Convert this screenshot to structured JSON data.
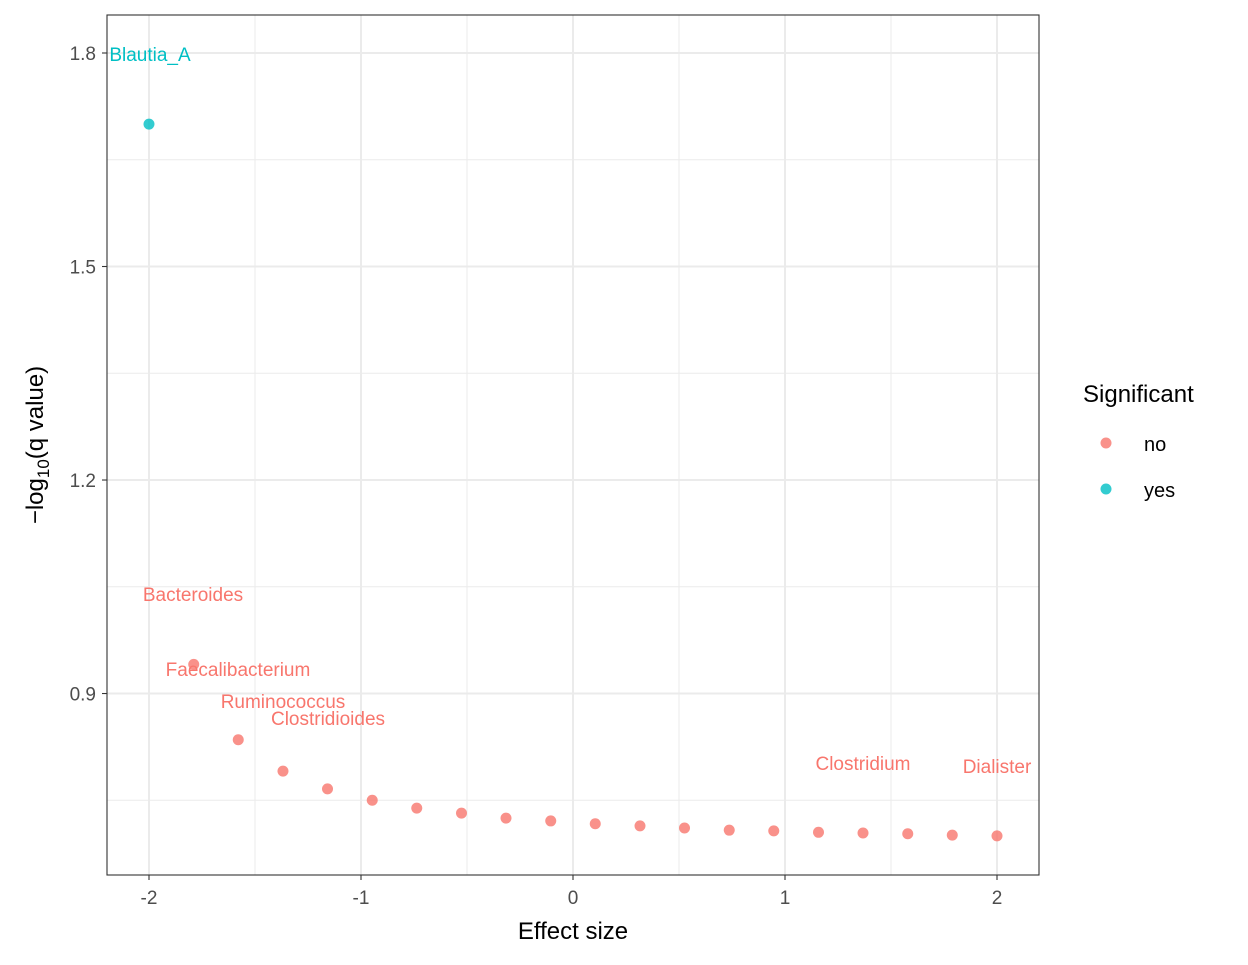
{
  "chart_data": {
    "type": "scatter",
    "title": "",
    "xlabel": "Effect size",
    "ylabel_prefix": "−log",
    "ylabel_sub": "10",
    "ylabel_suffix": "(q value)",
    "xlim": [
      -2.2,
      2.2
    ],
    "ylim": [
      0.657,
      1.865
    ],
    "xticks": [
      -2,
      -1,
      0,
      1,
      2
    ],
    "xtick_labels": [
      "-2",
      "-1",
      "0",
      "1",
      "2"
    ],
    "yticks": [
      0.9,
      1.2,
      1.5,
      1.8
    ],
    "ytick_labels": [
      "0.9",
      "1.2",
      "1.5",
      "1.8"
    ],
    "grid": true,
    "legend": {
      "title": "Significant",
      "position": "right",
      "entries": [
        {
          "label": "no",
          "color": "#F8766D"
        },
        {
          "label": "yes",
          "color": "#00BFC4"
        }
      ]
    },
    "points": [
      {
        "x": -2.0,
        "y": 1.7,
        "significant": "yes",
        "label": "Blautia_A"
      },
      {
        "x": -1.789,
        "y": 0.941,
        "significant": "no",
        "label": "Bacteroides"
      },
      {
        "x": -1.579,
        "y": 0.835,
        "significant": "no",
        "label": "Faecalibacterium"
      },
      {
        "x": -1.368,
        "y": 0.791,
        "significant": "no",
        "label": "Ruminococcus"
      },
      {
        "x": -1.158,
        "y": 0.766,
        "significant": "no",
        "label": "Clostridioides"
      },
      {
        "x": -0.947,
        "y": 0.75,
        "significant": "no",
        "label": ""
      },
      {
        "x": -0.737,
        "y": 0.739,
        "significant": "no",
        "label": ""
      },
      {
        "x": -0.526,
        "y": 0.732,
        "significant": "no",
        "label": ""
      },
      {
        "x": -0.316,
        "y": 0.725,
        "significant": "no",
        "label": ""
      },
      {
        "x": -0.105,
        "y": 0.721,
        "significant": "no",
        "label": ""
      },
      {
        "x": 0.105,
        "y": 0.717,
        "significant": "no",
        "label": ""
      },
      {
        "x": 0.316,
        "y": 0.714,
        "significant": "no",
        "label": ""
      },
      {
        "x": 0.526,
        "y": 0.711,
        "significant": "no",
        "label": ""
      },
      {
        "x": 0.737,
        "y": 0.708,
        "significant": "no",
        "label": ""
      },
      {
        "x": 0.947,
        "y": 0.707,
        "significant": "no",
        "label": ""
      },
      {
        "x": 1.158,
        "y": 0.705,
        "significant": "no",
        "label": ""
      },
      {
        "x": 1.368,
        "y": 0.704,
        "significant": "no",
        "label": "Clostridium"
      },
      {
        "x": 1.579,
        "y": 0.703,
        "significant": "no",
        "label": ""
      },
      {
        "x": 1.789,
        "y": 0.701,
        "significant": "no",
        "label": ""
      },
      {
        "x": 2.0,
        "y": 0.7,
        "significant": "no",
        "label": "Dialister"
      }
    ]
  }
}
